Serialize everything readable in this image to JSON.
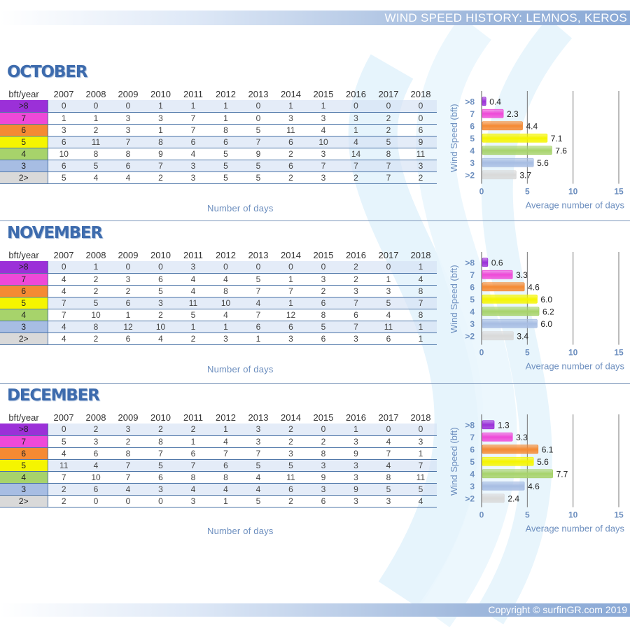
{
  "header": {
    "title": "WIND SPEED HISTORY: LEMNOS, KEROS"
  },
  "footer": {
    "copyright": "Copyright © surfinGR.com 2019"
  },
  "colors": {
    "title_blue": "#3d6bad",
    "row_line": "#4e76a8",
    "axis_text": "#6d8fbf",
    "row_band": "#d5e2f4"
  },
  "table": {
    "header_label": "bft/year",
    "years": [
      "2007",
      "2008",
      "2009",
      "2010",
      "2011",
      "2012",
      "2013",
      "2014",
      "2015",
      "2016",
      "2017",
      "2018"
    ],
    "row_labels": [
      ">8",
      "7",
      "6",
      "5",
      "4",
      "3",
      "2>"
    ],
    "row_colors": [
      "#9b30d8",
      "#ee49d8",
      "#f58a33",
      "#f5f500",
      "#a7d36b",
      "#a7bde3",
      "#d9d9d9"
    ]
  },
  "footer_label": "Number of days",
  "months": [
    {
      "name": "OCTOBER",
      "rows": [
        [
          0,
          0,
          0,
          1,
          1,
          1,
          0,
          1,
          1,
          0,
          0,
          0
        ],
        [
          1,
          1,
          3,
          3,
          7,
          1,
          0,
          3,
          3,
          3,
          2,
          0
        ],
        [
          3,
          2,
          3,
          1,
          7,
          8,
          5,
          11,
          4,
          1,
          2,
          6
        ],
        [
          6,
          11,
          7,
          8,
          6,
          6,
          7,
          6,
          10,
          4,
          5,
          9
        ],
        [
          10,
          8,
          8,
          9,
          4,
          5,
          9,
          2,
          3,
          14,
          8,
          11
        ],
        [
          6,
          5,
          6,
          7,
          3,
          5,
          5,
          6,
          7,
          7,
          7,
          3
        ],
        [
          5,
          4,
          4,
          2,
          3,
          5,
          5,
          2,
          3,
          2,
          7,
          2
        ]
      ],
      "chart_data": {
        "type": "bar",
        "orientation": "horizontal",
        "categories": [
          ">8",
          "7",
          "6",
          "5",
          "4",
          "3",
          ">2"
        ],
        "values": [
          0.4,
          2.3,
          4.4,
          7.1,
          7.6,
          5.6,
          3.7
        ],
        "value_labels": [
          "0.4",
          "2.3",
          "4.4",
          "7.1",
          "7.6",
          "5.6",
          "3.7"
        ],
        "ylabel": "Wind Speed (bft)",
        "xlabel": "Average number of days",
        "xlim": [
          0,
          15
        ],
        "xticks": [
          "0",
          "5",
          "10",
          "15"
        ],
        "grid": true
      }
    },
    {
      "name": "NOVEMBER",
      "rows": [
        [
          0,
          1,
          0,
          0,
          3,
          0,
          0,
          0,
          0,
          2,
          0,
          1
        ],
        [
          4,
          2,
          3,
          6,
          4,
          4,
          5,
          1,
          3,
          2,
          1,
          4
        ],
        [
          4,
          2,
          2,
          5,
          4,
          8,
          7,
          7,
          2,
          3,
          3,
          8
        ],
        [
          7,
          5,
          6,
          3,
          11,
          10,
          4,
          1,
          6,
          7,
          5,
          7
        ],
        [
          7,
          10,
          1,
          2,
          5,
          4,
          7,
          12,
          8,
          6,
          4,
          8
        ],
        [
          4,
          8,
          12,
          10,
          1,
          1,
          6,
          6,
          5,
          7,
          11,
          1
        ],
        [
          4,
          2,
          6,
          4,
          2,
          3,
          1,
          3,
          6,
          3,
          6,
          1
        ]
      ],
      "chart_data": {
        "type": "bar",
        "orientation": "horizontal",
        "categories": [
          ">8",
          "7",
          "6",
          "5",
          "4",
          "3",
          ">2"
        ],
        "values": [
          0.6,
          3.3,
          4.6,
          6.0,
          6.2,
          6.0,
          3.4
        ],
        "value_labels": [
          "0.6",
          "3.3",
          "4.6",
          "6.0",
          "6.2",
          "6.0",
          "3.4"
        ],
        "ylabel": "Wind Speed (bft)",
        "xlabel": "Average number of days",
        "xlim": [
          0,
          15
        ],
        "xticks": [
          "0",
          "5",
          "10",
          "15"
        ],
        "grid": true
      }
    },
    {
      "name": "DECEMBER",
      "rows": [
        [
          0,
          2,
          3,
          2,
          2,
          1,
          3,
          2,
          0,
          1,
          0,
          0
        ],
        [
          5,
          3,
          2,
          8,
          1,
          4,
          3,
          2,
          2,
          3,
          4,
          3
        ],
        [
          4,
          6,
          8,
          7,
          6,
          7,
          7,
          3,
          8,
          9,
          7,
          1
        ],
        [
          11,
          4,
          7,
          5,
          7,
          6,
          5,
          5,
          3,
          3,
          4,
          7
        ],
        [
          7,
          10,
          7,
          6,
          8,
          8,
          4,
          11,
          9,
          3,
          8,
          11
        ],
        [
          2,
          6,
          4,
          3,
          4,
          4,
          4,
          6,
          3,
          9,
          5,
          5
        ],
        [
          2,
          0,
          0,
          0,
          3,
          1,
          5,
          2,
          6,
          3,
          3,
          4
        ]
      ],
      "chart_data": {
        "type": "bar",
        "orientation": "horizontal",
        "categories": [
          ">8",
          "7",
          "6",
          "5",
          "4",
          "3",
          ">2"
        ],
        "values": [
          1.3,
          3.3,
          6.1,
          5.6,
          7.7,
          4.6,
          2.4
        ],
        "value_labels": [
          "1.3",
          "3.3",
          "6.1",
          "5.6",
          "7.7",
          "4.6",
          "2.4"
        ],
        "ylabel": "Wind Speed (bft)",
        "xlabel": "Average number of days",
        "xlim": [
          0,
          15
        ],
        "xticks": [
          "0",
          "5",
          "10",
          "15"
        ],
        "grid": true
      }
    }
  ]
}
